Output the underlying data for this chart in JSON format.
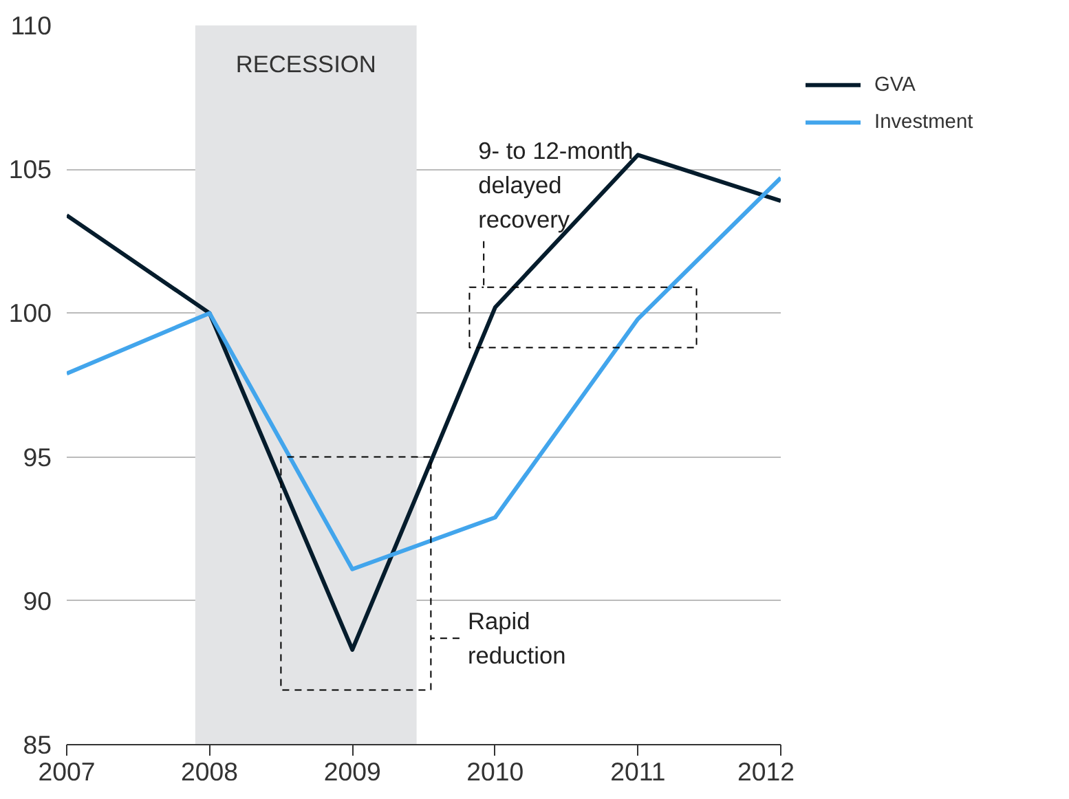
{
  "chart_data": {
    "type": "line",
    "x": [
      2007,
      2008,
      2009,
      2010,
      2011,
      2012
    ],
    "series": [
      {
        "name": "GVA",
        "color": "#051c2c",
        "values": [
          103.4,
          100,
          88.3,
          100.2,
          105.5,
          103.9
        ]
      },
      {
        "name": "Investment",
        "color": "#42a5ec",
        "values": [
          97.9,
          100,
          91.1,
          92.9,
          99.8,
          104.7
        ]
      },
      {
        "type": "line",
        "color": "#000000",
        "line_style": "dashed",
        "x": [
          2009.75,
          2009.55,
          2009.55,
          2008.5,
          2008.5,
          2009.55,
          2009.55
        ],
        "values": [
          88.7,
          88.7,
          95,
          95,
          86.9,
          86.9,
          88.7
        ]
      },
      {
        "type": "line",
        "color": "#000000",
        "line_style": "dashed",
        "x": [
          2009.92,
          2009.92,
          2011.41,
          2011.41,
          2009.82,
          2009.82,
          2009.92
        ],
        "values": [
          102.5,
          100.9,
          100.9,
          98.8,
          98.8,
          100.9,
          100.9
        ]
      }
    ],
    "xlim": [
      2007,
      2012
    ],
    "xticks": [
      2007,
      2008,
      2009,
      2010,
      2011,
      2012
    ],
    "ylim": [
      85,
      110
    ],
    "yticks": [
      85,
      90,
      95,
      100,
      105,
      110
    ],
    "grid": "y",
    "legend": "top right",
    "line_style": "solid",
    "bands": [
      {
        "axis": "x",
        "from": 2007.9,
        "to": 2009.45,
        "label": "RECESSION",
        "color": "#e3e4e6"
      }
    ],
    "annotations": [
      {
        "text": "9- to 12-month\ndelayed\nrecovery",
        "x": 2009.92,
        "y": 102.5
      },
      {
        "text": "Rapid\nreduction",
        "x": 2009.75,
        "y": 88.7
      }
    ]
  }
}
